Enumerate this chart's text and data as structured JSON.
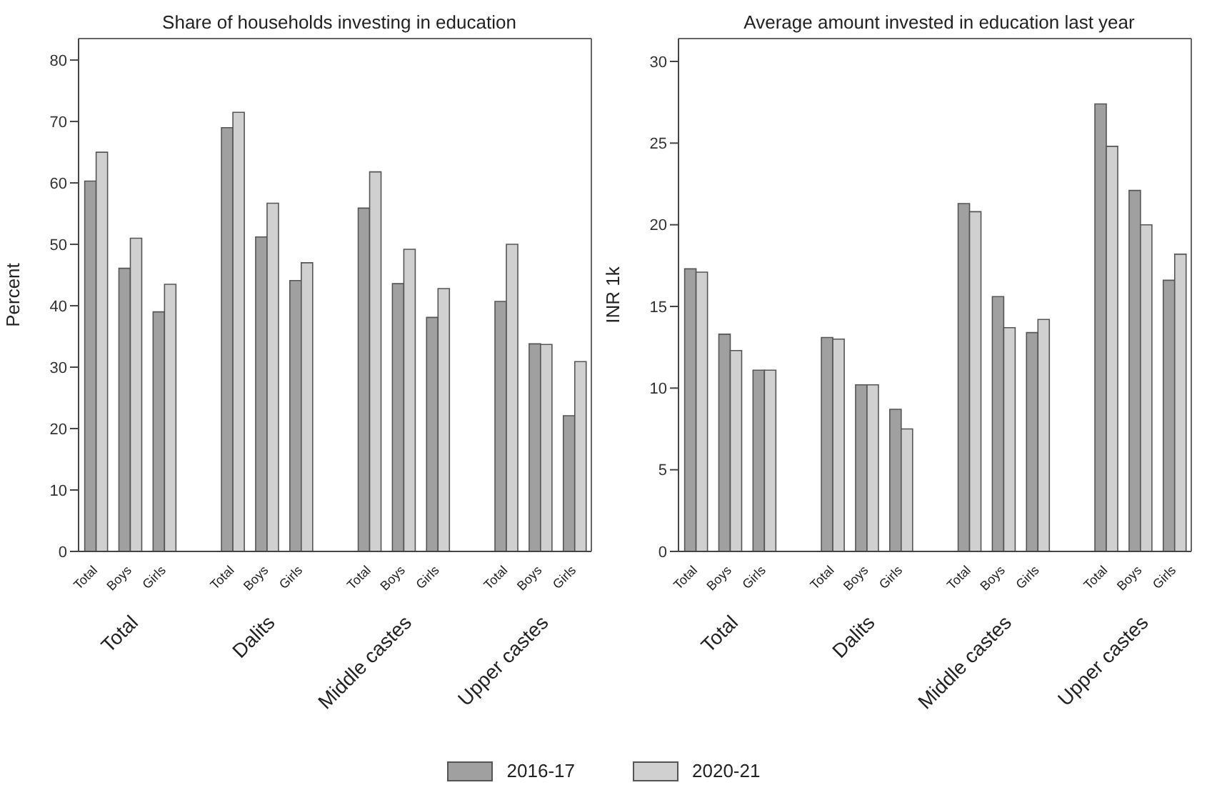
{
  "chart_data": [
    {
      "type": "bar",
      "title": "Share of households investing in education",
      "ylabel": "Percent",
      "categories": [
        "Total",
        "Boys",
        "Girls",
        null,
        "Total",
        "Boys",
        "Girls",
        null,
        "Total",
        "Boys",
        "Girls",
        null,
        "Total",
        "Boys",
        "Girls"
      ],
      "series": [
        {
          "name": "2016-17",
          "color": "#a0a0a0",
          "values": [
            60.3,
            46.1,
            39.0,
            null,
            69.0,
            51.2,
            44.1,
            null,
            55.9,
            43.6,
            38.1,
            null,
            40.7,
            33.8,
            22.1
          ]
        },
        {
          "name": "2020-21",
          "color": "#d0d0d0",
          "values": [
            65.0,
            51.0,
            43.5,
            null,
            71.5,
            56.7,
            47.0,
            null,
            61.8,
            49.2,
            42.8,
            null,
            50.0,
            33.7,
            30.9
          ]
        }
      ],
      "annotations": [
        "Total",
        "Dalits",
        "Middle castes",
        "Upper castes"
      ],
      "ylim": [
        0,
        83.5
      ],
      "yticks": [
        0,
        10,
        20,
        30,
        40,
        50,
        60,
        70,
        80
      ],
      "grid": false,
      "legend": "bottom"
    },
    {
      "type": "bar",
      "title": "Average amount invested in education last year",
      "ylabel": "INR 1k",
      "categories": [
        "Total",
        "Boys",
        "Girls",
        null,
        "Total",
        "Boys",
        "Girls",
        null,
        "Total",
        "Boys",
        "Girls",
        null,
        "Total",
        "Boys",
        "Girls"
      ],
      "series": [
        {
          "name": "2016-17",
          "color": "#a0a0a0",
          "values": [
            17.3,
            13.3,
            11.1,
            null,
            13.1,
            10.2,
            8.7,
            null,
            21.3,
            15.6,
            13.4,
            null,
            27.4,
            22.1,
            16.6
          ]
        },
        {
          "name": "2020-21",
          "color": "#d0d0d0",
          "values": [
            17.1,
            12.3,
            11.1,
            null,
            13.0,
            10.2,
            7.5,
            null,
            20.8,
            13.7,
            14.2,
            null,
            24.8,
            20.0,
            18.2
          ]
        }
      ],
      "annotations": [
        "Total",
        "Dalits",
        "Middle castes",
        "Upper castes"
      ],
      "ylim": [
        0,
        31.4
      ],
      "yticks": [
        0,
        5,
        10,
        15,
        20,
        25,
        30
      ],
      "grid": false,
      "legend": "bottom"
    }
  ]
}
